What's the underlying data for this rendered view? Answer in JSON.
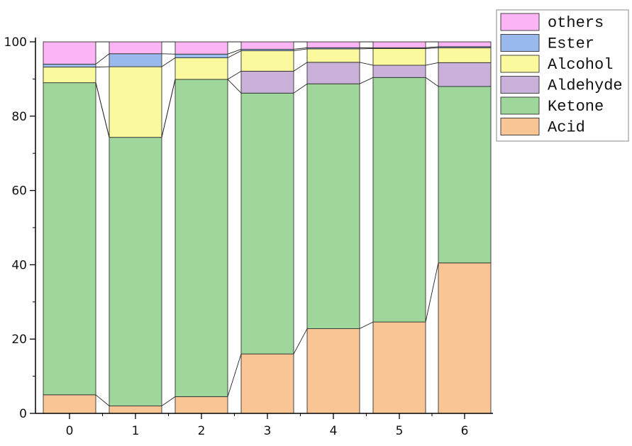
{
  "chart_data": {
    "type": "bar",
    "stacked": true,
    "categories": [
      "0",
      "1",
      "2",
      "3",
      "4",
      "5",
      "6"
    ],
    "ylim": [
      0,
      100
    ],
    "yticks": [
      "0",
      "20",
      "40",
      "60",
      "80",
      "100"
    ],
    "legend_position": "top-right",
    "series": [
      {
        "name": "Acid",
        "color": "#f9c594",
        "values": [
          5.0,
          2.0,
          4.5,
          16.0,
          22.8,
          24.6,
          40.5
        ]
      },
      {
        "name": "Ketone",
        "color": "#9ed69b",
        "values": [
          84.0,
          72.3,
          85.4,
          70.2,
          65.9,
          65.8,
          47.5
        ]
      },
      {
        "name": "Aldehyde",
        "color": "#c9b1d9",
        "values": [
          0.0,
          0.0,
          0.0,
          5.9,
          5.8,
          3.3,
          6.4
        ]
      },
      {
        "name": "Alcohol",
        "color": "#faf99d",
        "values": [
          4.2,
          19.0,
          5.8,
          5.5,
          3.6,
          4.5,
          4.0
        ]
      },
      {
        "name": "Ester",
        "color": "#99b8ec",
        "values": [
          0.8,
          3.5,
          1.0,
          0.4,
          0.3,
          0.2,
          0.3
        ]
      },
      {
        "name": "others",
        "color": "#fbb5f5",
        "values": [
          6.0,
          3.2,
          3.3,
          2.0,
          1.6,
          1.6,
          1.3
        ]
      }
    ]
  }
}
